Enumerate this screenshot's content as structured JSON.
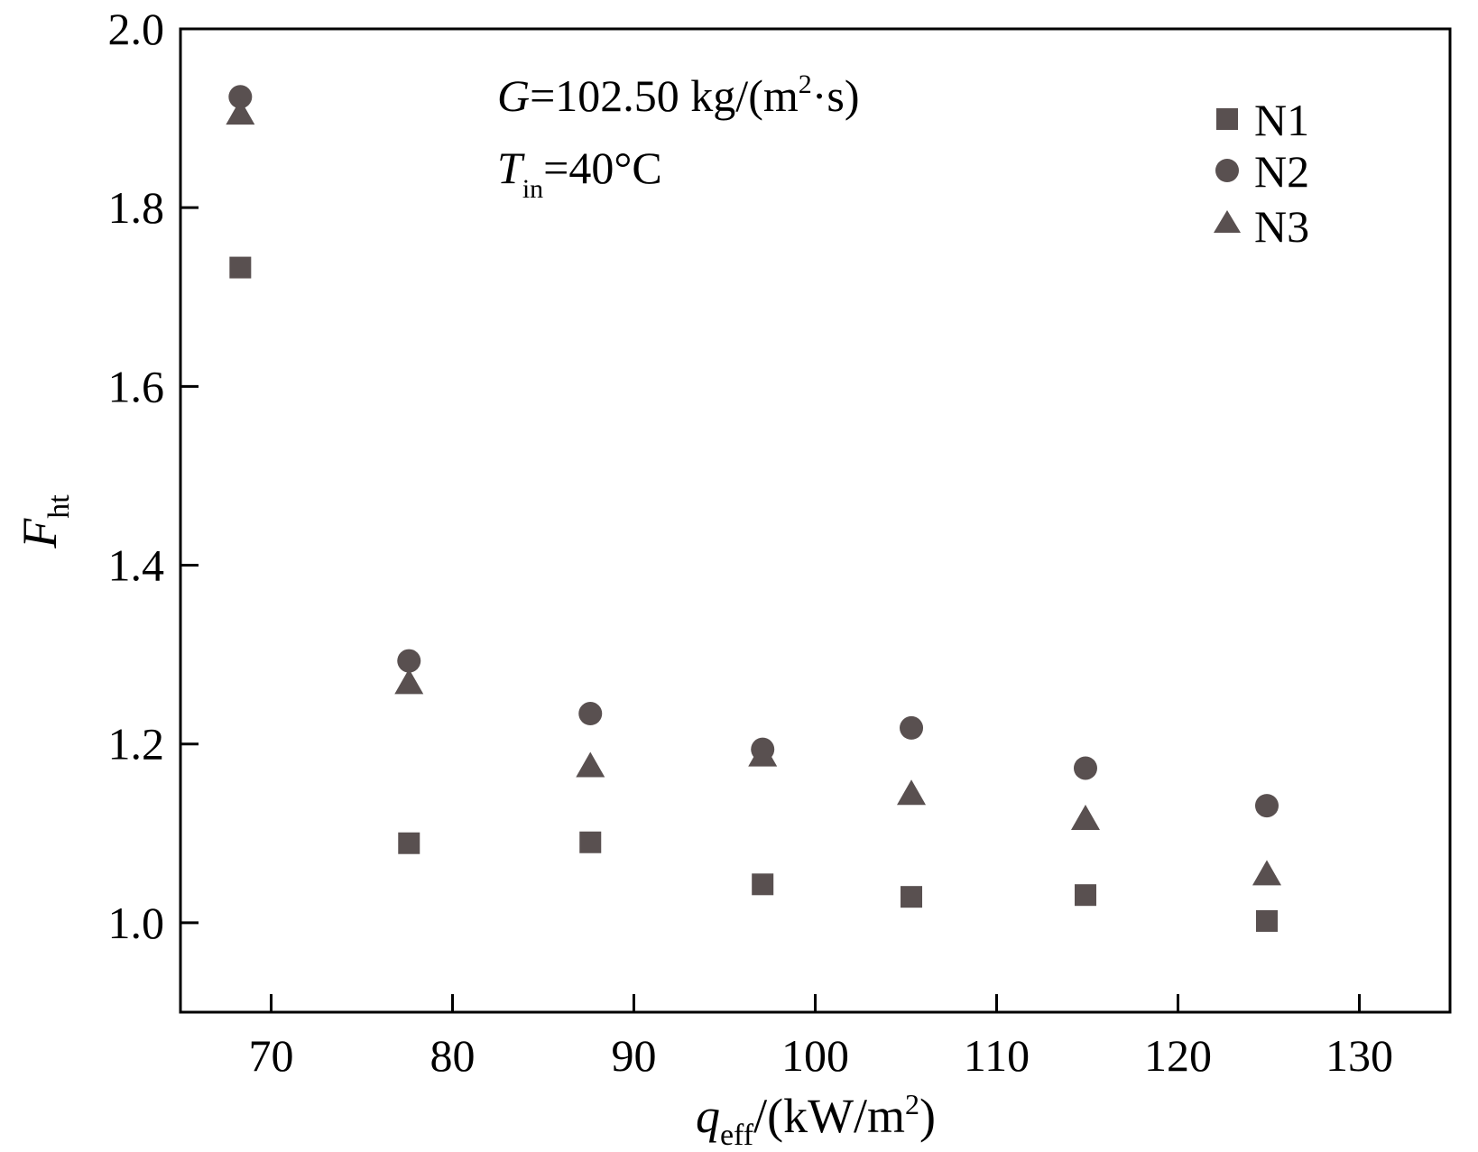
{
  "chart_data": {
    "type": "scatter",
    "xlim": [
      65,
      135
    ],
    "ylim": [
      0.9,
      2.0
    ],
    "x_ticks": [
      "70",
      "80",
      "90",
      "100",
      "110",
      "120",
      "130"
    ],
    "y_ticks": [
      "1.0",
      "1.2",
      "1.4",
      "1.6",
      "1.8",
      "2.0"
    ],
    "x_tick_values": [
      70,
      80,
      90,
      100,
      110,
      120,
      130
    ],
    "y_tick_values": [
      1.0,
      1.2,
      1.4,
      1.6,
      1.8,
      2.0
    ],
    "xlabel": {
      "main": "q",
      "sub": "eff",
      "rest": "/(kW/m",
      "sup": "2",
      "close": ")"
    },
    "ylabel": {
      "main": "F",
      "sub": "ht"
    },
    "annotations": {
      "line1": {
        "var": "G",
        "text": "=102.50 kg/(m",
        "sup": "2",
        "rest": "·s)"
      },
      "line2": {
        "var": "T",
        "sub": "in",
        "text": "=40°C"
      }
    },
    "legend_position": "top-right",
    "marker_color": "#595050",
    "series": [
      {
        "name": "N1",
        "marker": "square",
        "x": [
          68.3,
          77.6,
          87.6,
          97.1,
          105.3,
          114.9,
          124.9
        ],
        "y": [
          1.733,
          1.089,
          1.09,
          1.043,
          1.029,
          1.031,
          1.002
        ]
      },
      {
        "name": "N2",
        "marker": "circle",
        "x": [
          68.3,
          77.6,
          87.6,
          97.1,
          105.3,
          114.9,
          124.9
        ],
        "y": [
          1.924,
          1.293,
          1.234,
          1.194,
          1.218,
          1.173,
          1.131
        ]
      },
      {
        "name": "N3",
        "marker": "triangle",
        "x": [
          68.3,
          77.6,
          87.6,
          97.1,
          105.3,
          114.9,
          124.9
        ],
        "y": [
          1.905,
          1.268,
          1.175,
          1.187,
          1.144,
          1.116,
          1.054
        ]
      }
    ]
  }
}
